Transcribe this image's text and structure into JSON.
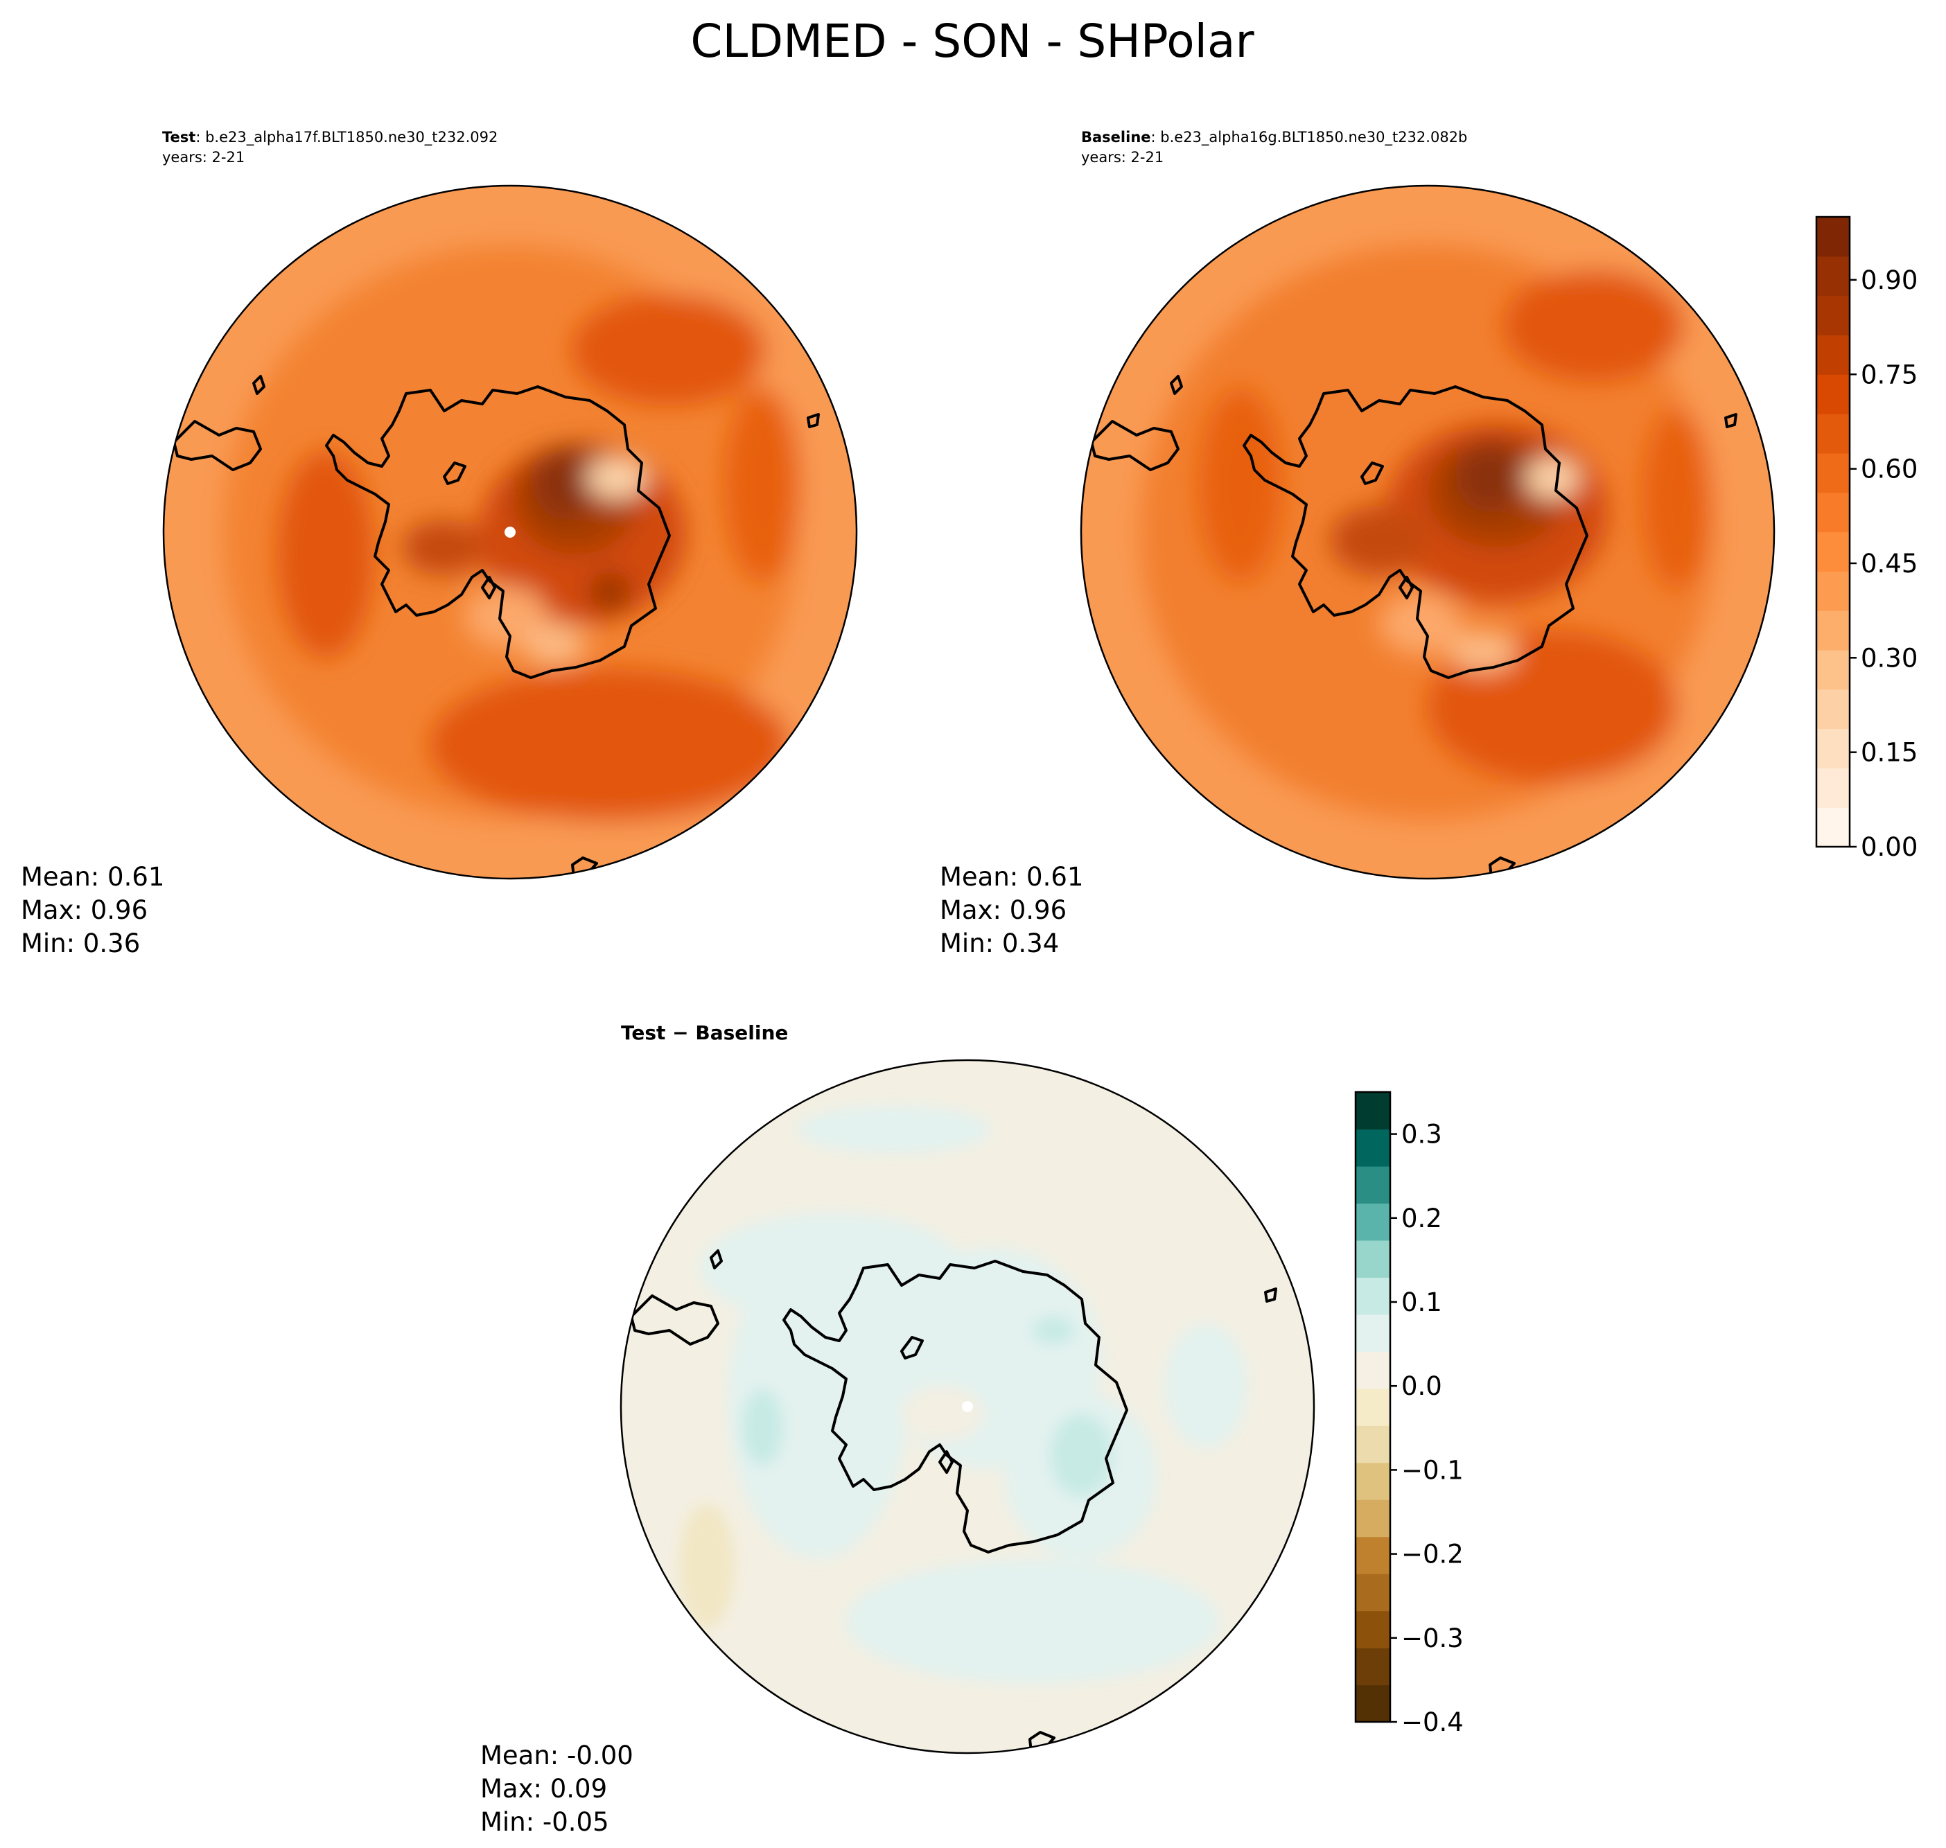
{
  "figure": {
    "title": "CLDMED - SON - SHPolar"
  },
  "colorbars": {
    "main": {
      "ticks": [
        "0.00",
        "0.15",
        "0.30",
        "0.45",
        "0.60",
        "0.75",
        "0.90"
      ],
      "tick_values": [
        0.0,
        0.15,
        0.3,
        0.45,
        0.6,
        0.75,
        0.9
      ],
      "range": [
        0.0,
        1.0
      ],
      "colors": [
        "#fff5eb",
        "#feead6",
        "#fee0c1",
        "#fdd1a5",
        "#fdc28a",
        "#fdae6b",
        "#fd9c51",
        "#fd8c3b",
        "#f77b29",
        "#f06b18",
        "#e45a0d",
        "#d94901",
        "#c14001",
        "#a73602",
        "#973103",
        "#7f2704"
      ]
    },
    "diff": {
      "ticks": [
        "0.3",
        "0.2",
        "0.1",
        "0.0",
        "−0.1",
        "−0.2",
        "−0.3",
        "−0.4"
      ],
      "tick_values": [
        0.3,
        0.2,
        0.1,
        0.0,
        -0.1,
        -0.2,
        -0.3,
        -0.4
      ],
      "range": [
        -0.4,
        0.35
      ],
      "colors": [
        "#543005",
        "#6e3e08",
        "#8c510a",
        "#a96b1e",
        "#bf812d",
        "#d5ac60",
        "#dfc27d",
        "#ecdbac",
        "#f6ebc9",
        "#f5f0e3",
        "#e4f2ef",
        "#c7eae5",
        "#98d6cc",
        "#5ab4ac",
        "#2a8e85",
        "#01665e",
        "#003c30"
      ]
    }
  },
  "chart_data": [
    {
      "type": "heatmap",
      "projection": "south-polar-stereographic",
      "title_bold": "Test",
      "title_rest": ": b.e23_alpha17f.BLT1850.ne30_t232.092",
      "subtitle": "years: 2-21",
      "stats": {
        "mean": "Mean:  0.61",
        "max": "Max:  0.96",
        "min": "Min:  0.36"
      },
      "field": "CLDMED",
      "value_range": [
        0.36,
        0.96
      ],
      "mean": 0.61
    },
    {
      "type": "heatmap",
      "projection": "south-polar-stereographic",
      "title_bold": "Baseline",
      "title_rest": ": b.e23_alpha16g.BLT1850.ne30_t232.082b",
      "subtitle": "years: 2-21",
      "stats": {
        "mean": "Mean:  0.61",
        "max": "Max:  0.96",
        "min": "Min:  0.34"
      },
      "field": "CLDMED",
      "value_range": [
        0.34,
        0.96
      ],
      "mean": 0.61
    },
    {
      "type": "heatmap",
      "projection": "south-polar-stereographic",
      "title_bold": "Test − Baseline",
      "stats": {
        "mean": "Mean: -0.00",
        "max": "Max:  0.09",
        "min": "Min: -0.05"
      },
      "field": "CLDMED difference",
      "value_range": [
        -0.05,
        0.09
      ],
      "mean": -0.0
    }
  ]
}
